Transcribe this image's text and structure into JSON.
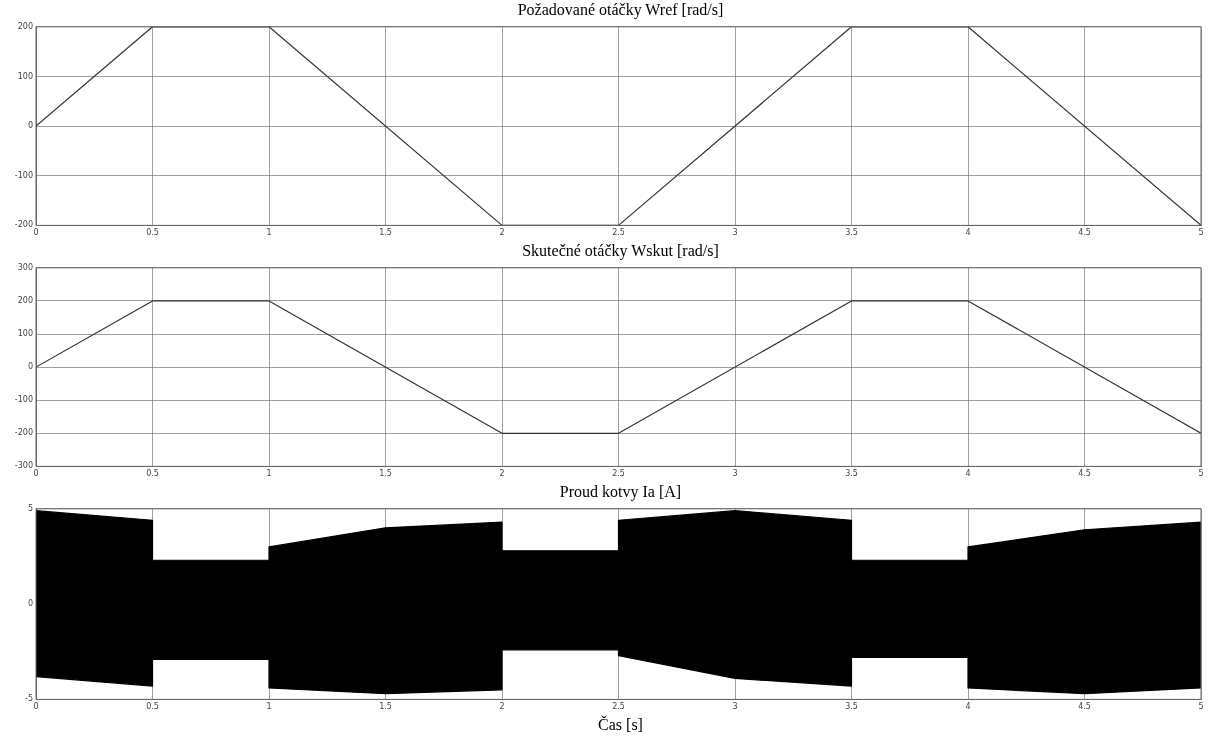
{
  "chart_data": [
    {
      "type": "line",
      "title": "Požadované otáčky Wref [rad/s]",
      "x": [
        0,
        0.5,
        1,
        2,
        2.5,
        3.5,
        4,
        5
      ],
      "series": [
        {
          "color": "#333333",
          "values": [
            0,
            200,
            200,
            -200,
            -200,
            200,
            200,
            -200
          ]
        }
      ],
      "xlim": [
        0,
        5
      ],
      "xticks": [
        0,
        0.5,
        1,
        1.5,
        2,
        2.5,
        3,
        3.5,
        4,
        4.5,
        5
      ],
      "ylim": [
        -200,
        200
      ],
      "yticks": [
        -200,
        -100,
        0,
        100,
        200
      ],
      "grid": true,
      "legend": false,
      "marker": "none"
    },
    {
      "type": "line",
      "title": "Skutečné otáčky Wskut [rad/s]",
      "x": [
        0,
        0.5,
        1,
        2,
        2.5,
        3.5,
        4,
        5
      ],
      "series": [
        {
          "color": "#333333",
          "values": [
            0,
            200,
            200,
            -200,
            -200,
            200,
            200,
            -200
          ]
        }
      ],
      "xlim": [
        0,
        5
      ],
      "xticks": [
        0,
        0.5,
        1,
        1.5,
        2,
        2.5,
        3,
        3.5,
        4,
        4.5,
        5
      ],
      "ylim": [
        -300,
        300
      ],
      "yticks": [
        -300,
        -200,
        -100,
        0,
        100,
        200,
        300
      ],
      "grid": true,
      "legend": false,
      "marker": "none"
    },
    {
      "type": "area",
      "title": "Proud kotvy Ia [A]",
      "xlabel": "Čas [s]",
      "x": [
        0,
        0.5,
        0.5,
        1,
        1,
        1.5,
        2,
        2,
        2.5,
        2.5,
        3,
        3.5,
        3.5,
        4,
        4,
        4.5,
        5
      ],
      "series": [
        {
          "color": "#000000",
          "values": [
            4.9,
            4.4,
            2.3,
            2.3,
            3.0,
            4.0,
            4.3,
            2.8,
            2.8,
            4.4,
            4.9,
            4.4,
            2.3,
            2.3,
            3.0,
            3.9,
            4.3
          ]
        },
        {
          "color": "#000000",
          "values": [
            -3.8,
            -4.3,
            -2.9,
            -2.9,
            -4.4,
            -4.7,
            -4.5,
            -2.4,
            -2.4,
            -2.7,
            -3.9,
            -4.3,
            -2.8,
            -2.8,
            -4.4,
            -4.7,
            -4.4
          ]
        }
      ],
      "xlim": [
        0,
        5
      ],
      "xticks": [
        0,
        0.5,
        1,
        1.5,
        2,
        2.5,
        3,
        3.5,
        4,
        4.5,
        5
      ],
      "ylim": [
        -5,
        5
      ],
      "yticks": [
        -5,
        0,
        5
      ],
      "grid": true,
      "legend": false,
      "marker": "none"
    }
  ]
}
